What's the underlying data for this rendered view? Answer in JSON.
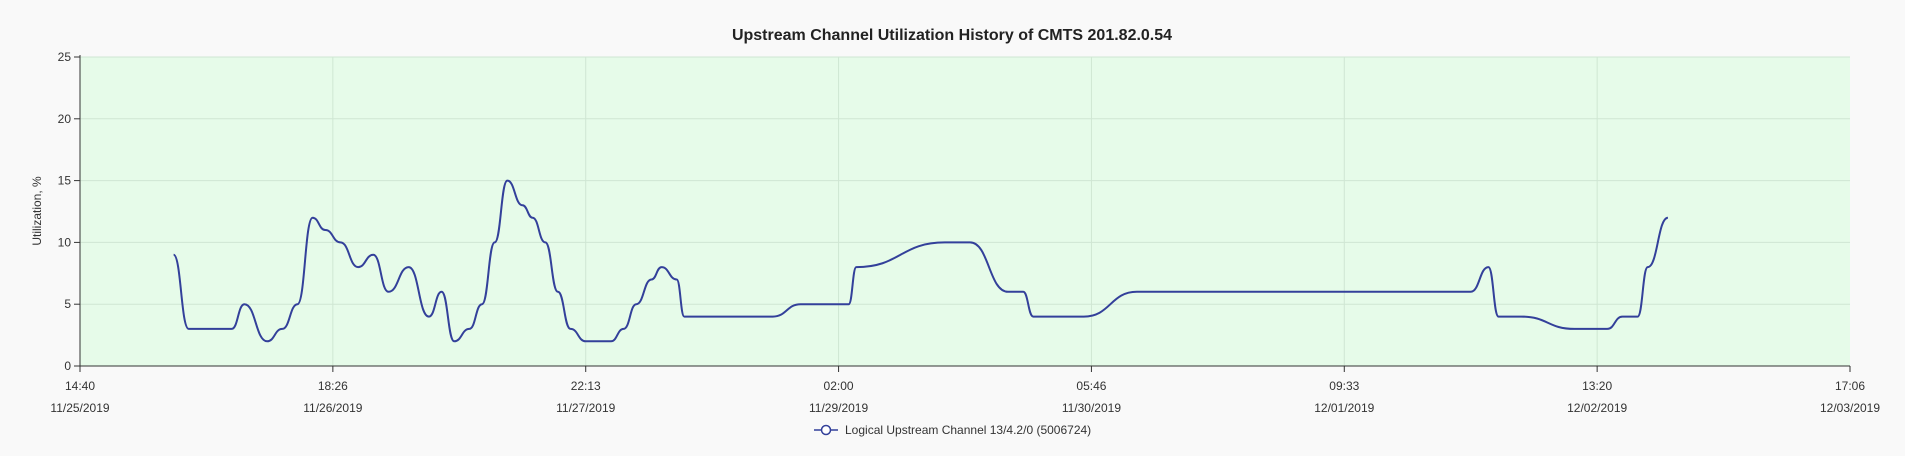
{
  "chart_data": {
    "type": "line",
    "title": "Upstream Channel Utilization History of CMTS 201.82.0.54",
    "ylabel": "Utilization, %",
    "xlabel": "",
    "ylim": [
      0,
      25
    ],
    "yticks": [
      0,
      5,
      10,
      15,
      20,
      25
    ],
    "xticks": [
      {
        "time": "14:40",
        "date": "11/25/2019"
      },
      {
        "time": "18:26",
        "date": "11/26/2019"
      },
      {
        "time": "22:13",
        "date": "11/27/2019"
      },
      {
        "time": "02:00",
        "date": "11/29/2019"
      },
      {
        "time": "05:46",
        "date": "11/30/2019"
      },
      {
        "time": "09:33",
        "date": "12/01/2019"
      },
      {
        "time": "13:20",
        "date": "12/02/2019"
      },
      {
        "time": "17:06",
        "date": "12/03/2019"
      }
    ],
    "grid": true,
    "legend_position": "bottom",
    "colors": {
      "plot_bg": "#e6fbe9",
      "line": "#33409a",
      "grid": "#cfe6d3"
    },
    "series": [
      {
        "name": "Logical Upstream Channel 13/4.2/0 (5006724)",
        "x": [
          0.37,
          0.43,
          0.6,
          0.65,
          0.74,
          0.8,
          0.86,
          0.92,
          0.97,
          1.03,
          1.1,
          1.16,
          1.22,
          1.3,
          1.38,
          1.43,
          1.48,
          1.54,
          1.59,
          1.64,
          1.69,
          1.75,
          1.79,
          1.84,
          1.89,
          1.94,
          2.0,
          2.09,
          2.1,
          2.15,
          2.2,
          2.26,
          2.3,
          2.36,
          2.39,
          2.43,
          2.5,
          2.74,
          2.85,
          3.04,
          3.07,
          3.42,
          3.52,
          3.67,
          3.73,
          3.77,
          3.82,
          3.91,
          3.97,
          4.18,
          4.22,
          4.72,
          4.79,
          5.5,
          5.57,
          5.61,
          5.7,
          5.91,
          6.04,
          6.1,
          6.16,
          6.2,
          6.28
        ],
        "y": [
          9,
          3,
          3,
          5,
          2,
          3,
          5,
          12,
          11,
          10,
          8,
          9,
          6,
          8,
          4,
          6,
          2,
          3,
          5,
          10,
          15,
          13,
          12,
          10,
          6,
          3,
          2,
          2,
          2,
          3,
          5,
          7,
          8,
          7,
          4,
          4,
          4,
          4,
          5,
          5,
          8,
          10,
          10,
          6,
          6,
          4,
          4,
          4,
          4,
          6,
          6,
          6,
          6,
          6,
          8,
          4,
          4,
          3,
          3,
          4,
          4,
          8,
          12
        ]
      }
    ]
  }
}
